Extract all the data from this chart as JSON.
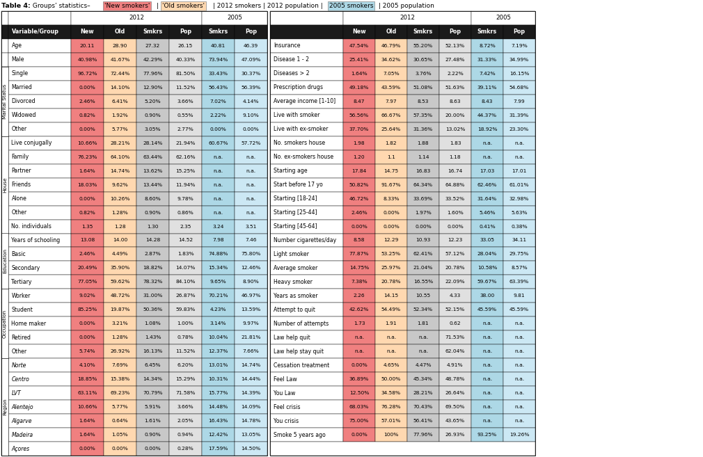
{
  "color_new": "#f08080",
  "color_old": "#ffd8b0",
  "color_smkrs2012": "#c8c8c8",
  "color_pop2012": "#e0e0e0",
  "color_smkrs2005": "#add8e6",
  "color_pop2005": "#cce8f4",
  "color_header_dark": "#1a1a1a",
  "color_header_text": "#ffffff",
  "color_row_white": "#ffffff",
  "left_rows": [
    {
      "name": "Age",
      "vals": [
        "20.11",
        "28.90",
        "27.32",
        "26.15",
        "40.81",
        "46.39"
      ],
      "group": ""
    },
    {
      "name": "Male",
      "vals": [
        "40.98%",
        "41.67%",
        "42.29%",
        "40.33%",
        "73.94%",
        "47.09%"
      ],
      "group": ""
    },
    {
      "name": "Single",
      "vals": [
        "96.72%",
        "72.44%",
        "77.96%",
        "81.50%",
        "33.43%",
        "30.37%"
      ],
      "group": "Marital Status"
    },
    {
      "name": "Married",
      "vals": [
        "0.00%",
        "14.10%",
        "12.90%",
        "11.52%",
        "56.43%",
        "56.39%"
      ],
      "group": "Marital Status"
    },
    {
      "name": "Divorced",
      "vals": [
        "2.46%",
        "6.41%",
        "5.20%",
        "3.66%",
        "7.02%",
        "4.14%"
      ],
      "group": "Marital Status"
    },
    {
      "name": "Widowed",
      "vals": [
        "0.82%",
        "1.92%",
        "0.90%",
        "0.55%",
        "2.22%",
        "9.10%"
      ],
      "group": "Marital Status"
    },
    {
      "name": "Other",
      "vals": [
        "0.00%",
        "5.77%",
        "3.05%",
        "2.77%",
        "0.00%",
        "0.00%"
      ],
      "group": "Marital Status"
    },
    {
      "name": "Live conjugally",
      "vals": [
        "10.66%",
        "28.21%",
        "28.14%",
        "21.94%",
        "60.67%",
        "57.72%"
      ],
      "group": "House"
    },
    {
      "name": "Family",
      "vals": [
        "76.23%",
        "64.10%",
        "63.44%",
        "62.16%",
        "n.a.",
        "n.a."
      ],
      "group": "House"
    },
    {
      "name": "Partner",
      "vals": [
        "1.64%",
        "14.74%",
        "13.62%",
        "15.25%",
        "n.a.",
        "n.a."
      ],
      "group": "House"
    },
    {
      "name": "Friends",
      "vals": [
        "18.03%",
        "9.62%",
        "13.44%",
        "11.94%",
        "n.a.",
        "n.a."
      ],
      "group": "House"
    },
    {
      "name": "Alone",
      "vals": [
        "0.00%",
        "10.26%",
        "8.60%",
        "9.78%",
        "n.a.",
        "n.a."
      ],
      "group": "House"
    },
    {
      "name": "Other",
      "vals": [
        "0.82%",
        "1.28%",
        "0.90%",
        "0.86%",
        "n.a.",
        "n.a."
      ],
      "group": "House"
    },
    {
      "name": "No. individuals",
      "vals": [
        "1.35",
        "1.28",
        "1.30",
        "2.35",
        "3.24",
        "3.51"
      ],
      "group": "House"
    },
    {
      "name": "Years of schooling",
      "vals": [
        "13.08",
        "14.00",
        "14.28",
        "14.52",
        "7.98",
        "7.46"
      ],
      "group": "Education"
    },
    {
      "name": "Basic",
      "vals": [
        "2.46%",
        "4.49%",
        "2.87%",
        "1.83%",
        "74.88%",
        "75.80%"
      ],
      "group": "Education"
    },
    {
      "name": "Secondary",
      "vals": [
        "20.49%",
        "35.90%",
        "18.82%",
        "14.07%",
        "15.34%",
        "12.46%"
      ],
      "group": "Education"
    },
    {
      "name": "Tertiary",
      "vals": [
        "77.05%",
        "59.62%",
        "78.32%",
        "84.10%",
        "9.65%",
        "8.90%"
      ],
      "group": "Education"
    },
    {
      "name": "Worker",
      "vals": [
        "9.02%",
        "48.72%",
        "31.00%",
        "26.87%",
        "70.21%",
        "46.97%"
      ],
      "group": "Occupation"
    },
    {
      "name": "Student",
      "vals": [
        "85.25%",
        "19.87%",
        "50.36%",
        "59.83%",
        "4.23%",
        "13.59%"
      ],
      "group": "Occupation"
    },
    {
      "name": "Home maker",
      "vals": [
        "0.00%",
        "3.21%",
        "1.08%",
        "1.00%",
        "3.14%",
        "9.97%"
      ],
      "group": "Occupation"
    },
    {
      "name": "Retired",
      "vals": [
        "0.00%",
        "1.28%",
        "1.43%",
        "0.78%",
        "10.04%",
        "21.81%"
      ],
      "group": "Occupation"
    },
    {
      "name": "Other",
      "vals": [
        "5.74%",
        "26.92%",
        "16.13%",
        "11.52%",
        "12.37%",
        "7.66%"
      ],
      "group": "Occupation"
    },
    {
      "name": "Norte",
      "vals": [
        "4.10%",
        "7.69%",
        "6.45%",
        "6.20%",
        "13.01%",
        "14.74%"
      ],
      "group": "Region",
      "italic": true
    },
    {
      "name": "Centro",
      "vals": [
        "18.85%",
        "15.38%",
        "14.34%",
        "15.29%",
        "10.31%",
        "14.44%"
      ],
      "group": "Region",
      "italic": true
    },
    {
      "name": "LVT",
      "vals": [
        "63.11%",
        "69.23%",
        "70.79%",
        "71.58%",
        "15.77%",
        "14.39%"
      ],
      "group": "Region",
      "italic": true
    },
    {
      "name": "Alentejo",
      "vals": [
        "10.66%",
        "5.77%",
        "5.91%",
        "3.66%",
        "14.48%",
        "14.09%"
      ],
      "group": "Region",
      "italic": true
    },
    {
      "name": "Algarve",
      "vals": [
        "1.64%",
        "0.64%",
        "1.61%",
        "2.05%",
        "16.43%",
        "14.78%"
      ],
      "group": "Region",
      "italic": true
    },
    {
      "name": "Madeira",
      "vals": [
        "1.64%",
        "1.05%",
        "0.90%",
        "0.94%",
        "12.42%",
        "13.05%"
      ],
      "group": "Region",
      "italic": true
    },
    {
      "name": "Açores",
      "vals": [
        "0.00%",
        "0.00%",
        "0.00%",
        "0.28%",
        "17.59%",
        "14.50%"
      ],
      "group": "Region",
      "italic": true
    }
  ],
  "right_rows": [
    {
      "name": "Insurance",
      "vals": [
        "47.54%",
        "46.79%",
        "55.20%",
        "52.13%",
        "8.72%",
        "7.19%"
      ]
    },
    {
      "name": "Disease 1 - 2",
      "vals": [
        "25.41%",
        "34.62%",
        "30.65%",
        "27.48%",
        "31.33%",
        "34.99%"
      ]
    },
    {
      "name": "Diseases > 2",
      "vals": [
        "1.64%",
        "7.05%",
        "3.76%",
        "2.22%",
        "7.42%",
        "16.15%"
      ]
    },
    {
      "name": "Prescription drugs",
      "vals": [
        "49.18%",
        "43.59%",
        "51.08%",
        "51.63%",
        "39.11%",
        "54.68%"
      ]
    },
    {
      "name": "Average income [1-10]",
      "vals": [
        "8.47",
        "7.97",
        "8.53",
        "8.63",
        "8.43",
        "7.99"
      ]
    },
    {
      "name": "Live with smoker",
      "vals": [
        "56.56%",
        "66.67%",
        "57.35%",
        "20.00%",
        "44.37%",
        "31.39%"
      ]
    },
    {
      "name": "Live with ex-smoker",
      "vals": [
        "37.70%",
        "25.64%",
        "31.36%",
        "13.02%",
        "18.92%",
        "23.30%"
      ]
    },
    {
      "name": "No. smokers house",
      "vals": [
        "1.98",
        "1.82",
        "1.88",
        "1.83",
        "n.a.",
        "n.a."
      ]
    },
    {
      "name": "No. ex-smokers house",
      "vals": [
        "1.20",
        "1.1",
        "1.14",
        "1.18",
        "n.a.",
        "n.a."
      ]
    },
    {
      "name": "Starting age",
      "vals": [
        "17.84",
        "14.75",
        "16.83",
        "16.74",
        "17.03",
        "17.01"
      ]
    },
    {
      "name": "Start before 17 yo",
      "vals": [
        "50.82%",
        "91.67%",
        "64.34%",
        "64.88%",
        "62.46%",
        "61.01%"
      ]
    },
    {
      "name": "Starting [18-24]",
      "vals": [
        "46.72%",
        "8.33%",
        "33.69%",
        "33.52%",
        "31.64%",
        "32.98%"
      ]
    },
    {
      "name": "Starting [25-44]",
      "vals": [
        "2.46%",
        "0.00%",
        "1.97%",
        "1.60%",
        "5.46%",
        "5.63%"
      ]
    },
    {
      "name": "Starting [45-64]",
      "vals": [
        "0.00%",
        "0.00%",
        "0.00%",
        "0.00%",
        "0.41%",
        "0.38%"
      ]
    },
    {
      "name": "Number cigarettes/day",
      "vals": [
        "8.58",
        "12.29",
        "10.93",
        "12.23",
        "33.05",
        "34.11"
      ]
    },
    {
      "name": "Light smoker",
      "vals": [
        "77.87%",
        "53.25%",
        "62.41%",
        "57.12%",
        "28.04%",
        "29.75%"
      ]
    },
    {
      "name": "Average smoker",
      "vals": [
        "14.75%",
        "25.97%",
        "21.04%",
        "20.78%",
        "10.58%",
        "8.57%"
      ]
    },
    {
      "name": "Heavy smoker",
      "vals": [
        "7.38%",
        "20.78%",
        "16.55%",
        "22.09%",
        "59.67%",
        "63.39%"
      ]
    },
    {
      "name": "Years as smoker",
      "vals": [
        "2.26",
        "14.15",
        "10.55",
        "4.33",
        "38.00",
        "9.81"
      ]
    },
    {
      "name": "Attempt to quit",
      "vals": [
        "42.62%",
        "54.49%",
        "52.34%",
        "52.15%",
        "45.59%",
        "45.59%"
      ]
    },
    {
      "name": "Number of attempts",
      "vals": [
        "1.73",
        "1.91",
        "1.81",
        "0.62",
        "n.a.",
        "n.a."
      ]
    },
    {
      "name": "Law help quit",
      "vals": [
        "n.a.",
        "n.a.",
        "n.a.",
        "71.53%",
        "n.a.",
        "n.a."
      ]
    },
    {
      "name": "Law help stay quit",
      "vals": [
        "n.a.",
        "n.a.",
        "n.a.",
        "62.04%",
        "n.a.",
        "n.a."
      ]
    },
    {
      "name": "Cessation treatment",
      "vals": [
        "0.00%",
        "4.65%",
        "4.47%",
        "4.91%",
        "n.a.",
        "n.a."
      ]
    },
    {
      "name": "Feel Law",
      "vals": [
        "36.89%",
        "50.00%",
        "45.34%",
        "48.78%",
        "n.a.",
        "n.a."
      ]
    },
    {
      "name": "You Law",
      "vals": [
        "12.50%",
        "34.58%",
        "28.21%",
        "26.64%",
        "n.a.",
        "n.a."
      ]
    },
    {
      "name": "Feel crisis",
      "vals": [
        "68.03%",
        "76.28%",
        "70.43%",
        "69.50%",
        "n.a.",
        "n.a."
      ]
    },
    {
      "name": "You crisis",
      "vals": [
        "75.00%",
        "57.01%",
        "56.41%",
        "43.65%",
        "n.a.",
        "n.a."
      ]
    },
    {
      "name": "Smoke 5 years ago",
      "vals": [
        "0.00%",
        "100%",
        "77.96%",
        "26.93%",
        "93.25%",
        "19.26%"
      ]
    }
  ],
  "group_defs": [
    {
      "label": "Marital Status",
      "start": 2,
      "end": 6
    },
    {
      "label": "House",
      "start": 7,
      "end": 13
    },
    {
      "label": "Education",
      "start": 14,
      "end": 17
    },
    {
      "label": "Occupation",
      "start": 18,
      "end": 22
    },
    {
      "label": "Region",
      "start": 23,
      "end": 29
    }
  ]
}
